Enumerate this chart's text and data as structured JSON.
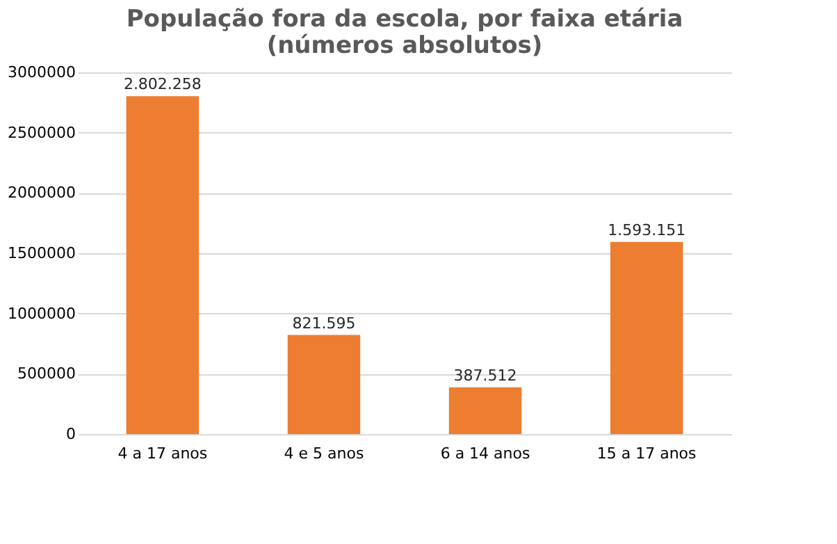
{
  "chart_data": {
    "type": "bar",
    "title": "População fora da escola, por faixa etária\n(números absolutos)",
    "categories": [
      "4 a 17 anos",
      "4 e 5 anos",
      "6 a 14 anos",
      "15 a 17 anos"
    ],
    "values": [
      2802258,
      821595,
      387512,
      1593151
    ],
    "value_labels": [
      "2.802.258",
      "821.595",
      "387.512",
      "1.593.151"
    ],
    "color": "#ed7d31",
    "ylim": [
      0,
      3000000
    ],
    "yticks": [
      0,
      500000,
      1000000,
      1500000,
      2000000,
      2500000,
      3000000
    ],
    "grid": "y"
  }
}
